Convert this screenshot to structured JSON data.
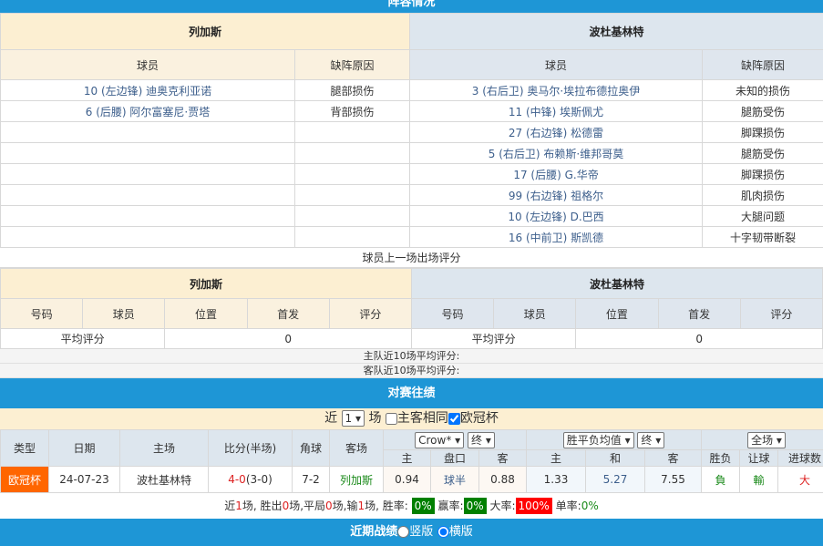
{
  "lineup": {
    "title": "阵容情况",
    "home": "列加斯",
    "away": "波杜基林特",
    "col_player": "球员",
    "col_reason": "缺阵原因",
    "home_absent": [
      {
        "player": "10 (左边锋) 迪奥克利亚诺",
        "reason": "腿部损伤"
      },
      {
        "player": "6 (后腰) 阿尔富塞尼·贾塔",
        "reason": "背部损伤"
      }
    ],
    "away_absent": [
      {
        "player": "3 (右后卫) 奥马尔·埃拉布德拉奥伊",
        "reason": "未知的损伤"
      },
      {
        "player": "11 (中锋) 埃斯佩尤",
        "reason": "腿筋受伤"
      },
      {
        "player": "27 (右边锋) 松德雷",
        "reason": "脚踝损伤"
      },
      {
        "player": "5 (右后卫) 布赖斯·维邦哥莫",
        "reason": "腿筋受伤"
      },
      {
        "player": "17 (后腰) G.华帝",
        "reason": "脚踝损伤"
      },
      {
        "player": "99 (右边锋) 祖格尔",
        "reason": "肌肉损伤"
      },
      {
        "player": "10 (左边锋) D.巴西",
        "reason": "大腿问题"
      },
      {
        "player": "16 (中前卫) 斯凯德",
        "reason": "十字韧带断裂"
      }
    ]
  },
  "rating": {
    "title": "球员上一场出场评分",
    "cols": [
      "号码",
      "球员",
      "位置",
      "首发",
      "评分"
    ],
    "avg_label": "平均评分",
    "home_avg": "0",
    "away_avg": "0",
    "home_recent": "主队近10场平均评分:",
    "away_recent": "客队近10场平均评分:"
  },
  "h2h": {
    "title": "对赛往绩",
    "filter": {
      "near": "近",
      "count": "1",
      "unit": "场",
      "same_home_away": "主客相同",
      "same_checked": false,
      "league": "欧冠杯",
      "league_checked": true
    },
    "headers": {
      "type": "类型",
      "date": "日期",
      "home": "主场",
      "score": "比分(半场)",
      "corner": "角球",
      "away": "客场",
      "company": "Crow*",
      "end1": "终",
      "odds_type": "胜平负均值",
      "end2": "终",
      "scope": "全场",
      "h": "主",
      "line": "盘口",
      "a": "客",
      "h2": "主",
      "d": "和",
      "a2": "客",
      "wl": "胜负",
      "hc": "让球",
      "ou": "进球数"
    },
    "rows": [
      {
        "type": "欧冠杯",
        "date": "24-07-23",
        "home": "波杜基林特",
        "score": "4-0",
        "half": "(3-0)",
        "corner": "7-2",
        "away": "列加斯",
        "h": "0.94",
        "line": "球半",
        "a": "0.88",
        "h2": "1.33",
        "d": "5.27",
        "a2": "7.55",
        "wl": "負",
        "hc": "輸",
        "ou": "大"
      }
    ],
    "summary": {
      "t1": "近",
      "n": "1",
      "t2": "场, 胜出",
      "w": "0",
      "t3": "场,平局",
      "d": "0",
      "t4": "场,输",
      "l": "1",
      "t5": "场, 胜率:",
      "win_rate": "0%",
      "t6": "赢率:",
      "ying_rate": "0%",
      "t7": "大率:",
      "big_rate": "100%",
      "t8": "单率:",
      "odd_rate": "0%"
    }
  },
  "recent": {
    "title": "近期战绩",
    "opt1": "竖版",
    "opt2": "横版"
  },
  "colors": {
    "bar": "#1e96d6",
    "type_badge": "#ff6600",
    "green_badge": "#008000",
    "red_badge": "#ff0000"
  }
}
